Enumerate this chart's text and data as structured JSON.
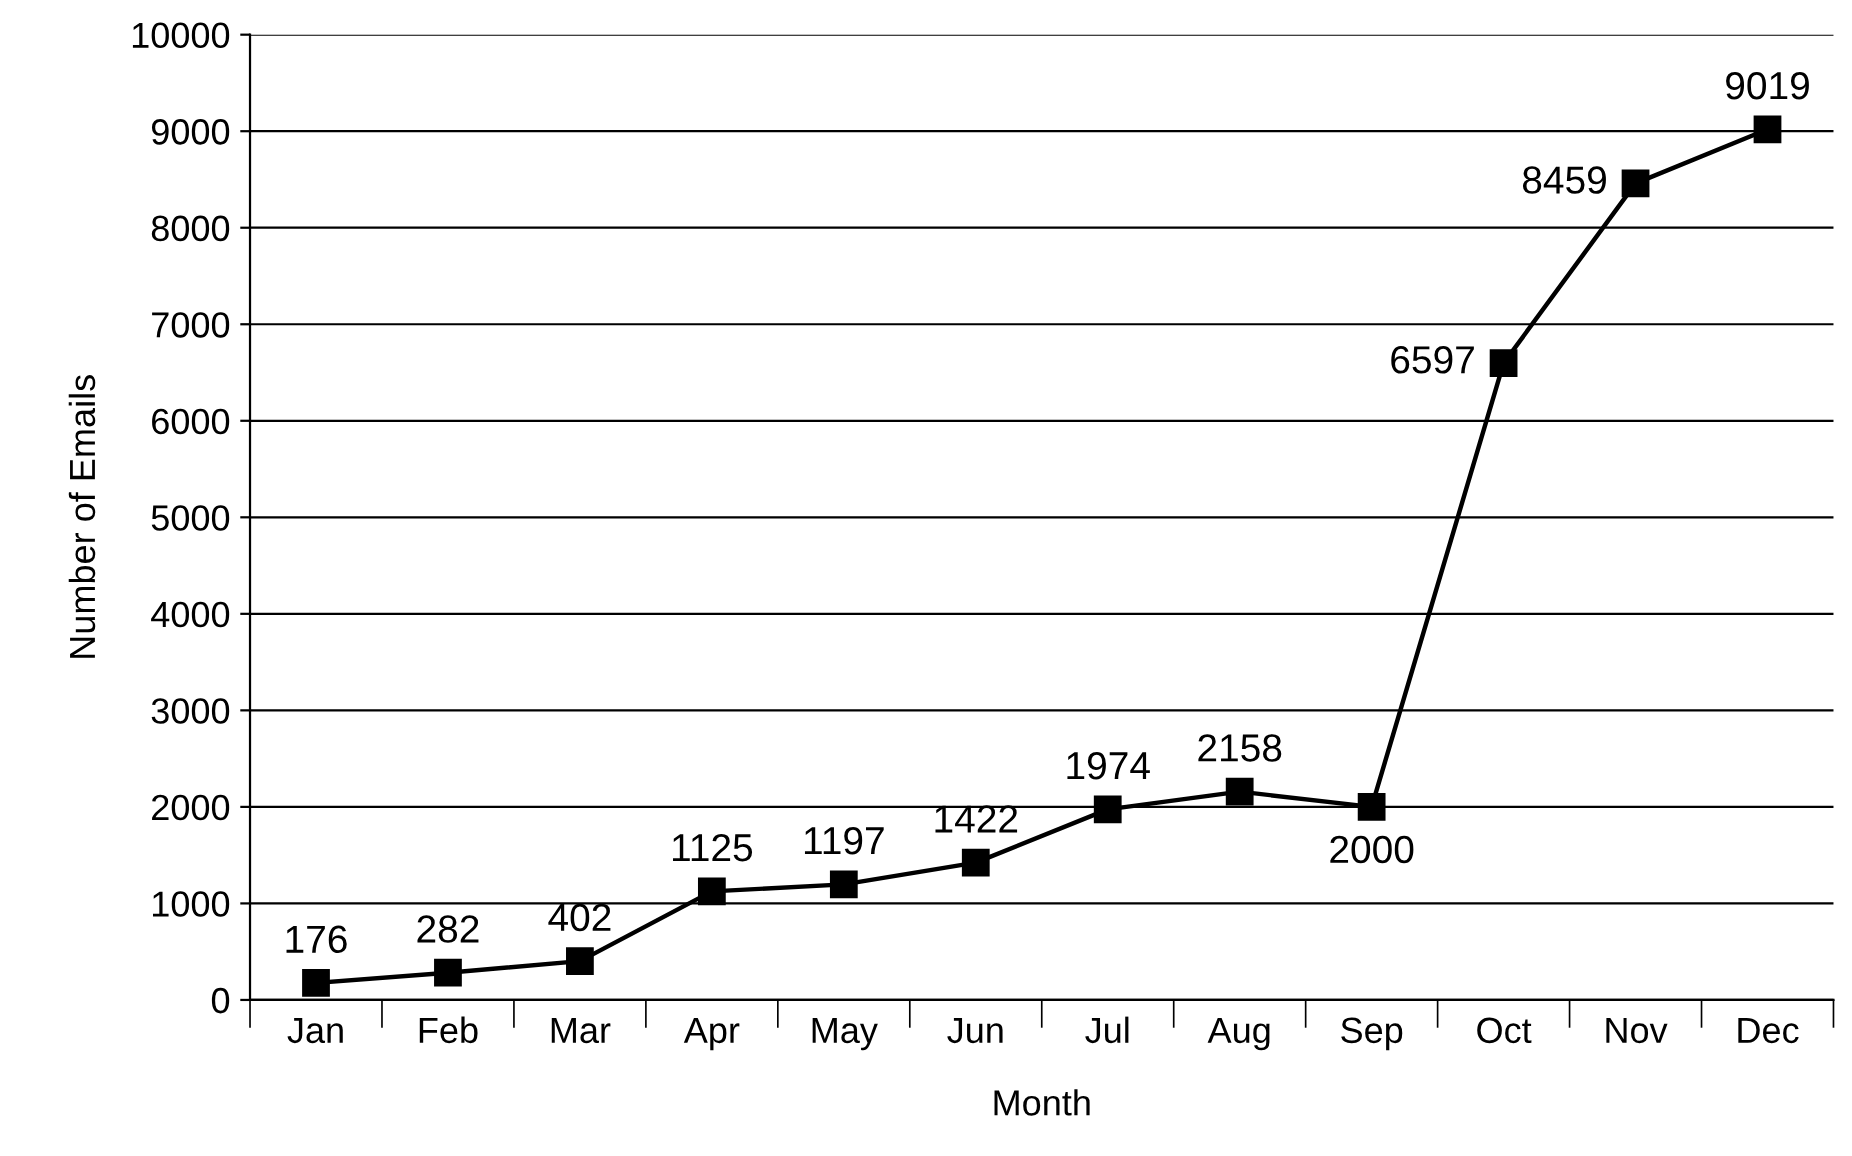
{
  "chart_data": {
    "type": "line",
    "xlabel": "Month",
    "ylabel": "Number of Emails",
    "categories": [
      "Jan",
      "Feb",
      "Mar",
      "Apr",
      "May",
      "Jun",
      "Jul",
      "Aug",
      "Sep",
      "Oct",
      "Nov",
      "Dec"
    ],
    "series": [
      {
        "color": "#000000",
        "values": [
          176,
          282,
          402,
          1125,
          1197,
          1422,
          1974,
          2158,
          2000,
          6597,
          8459,
          9019
        ]
      }
    ],
    "ylim": [
      0,
      10000
    ],
    "yticks": [
      0,
      1000,
      2000,
      3000,
      4000,
      5000,
      6000,
      7000,
      8000,
      9000,
      10000
    ],
    "grid": "y",
    "marker": "square",
    "line_style": "solid",
    "data_labels": true
  }
}
